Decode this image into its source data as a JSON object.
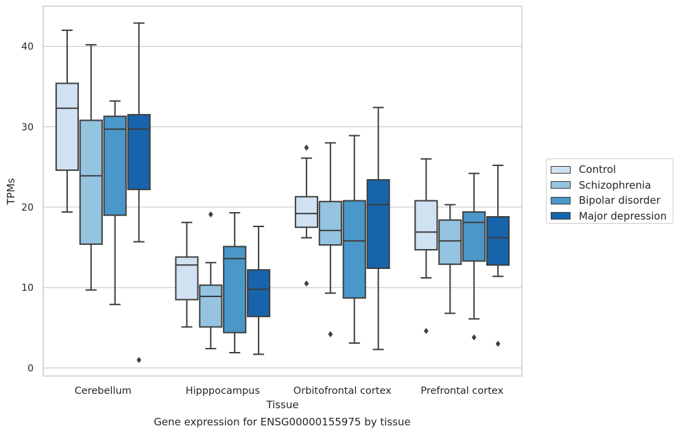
{
  "caption": "Gene expression for ENSG00000155975 by tissue",
  "chart_data": {
    "type": "boxplot",
    "xlabel": "Tissue",
    "ylabel": "TPMs",
    "ylim": [
      -1,
      45
    ],
    "yticks": [
      0,
      10,
      20,
      30,
      40
    ],
    "grid": "horizontal",
    "legend_position": "right",
    "categories": [
      "Cerebellum",
      "Hipppocampus",
      "Orbitofrontal cortex",
      "Prefrontal cortex"
    ],
    "series": [
      {
        "name": "Control",
        "color": "#d0e1f2",
        "boxes": [
          {
            "whislo": 19.4,
            "q1": 24.6,
            "med": 32.3,
            "q3": 35.4,
            "whishi": 42.0,
            "fliers": []
          },
          {
            "whislo": 5.1,
            "q1": 8.5,
            "med": 12.8,
            "q3": 13.8,
            "whishi": 18.1,
            "fliers": []
          },
          {
            "whislo": 16.2,
            "q1": 17.5,
            "med": 19.2,
            "q3": 21.3,
            "whishi": 26.1,
            "fliers": [
              27.4,
              10.5
            ]
          },
          {
            "whislo": 11.2,
            "q1": 14.7,
            "med": 16.9,
            "q3": 20.8,
            "whishi": 26.0,
            "fliers": [
              4.6
            ]
          }
        ]
      },
      {
        "name": "Schizophrenia",
        "color": "#94c4df",
        "boxes": [
          {
            "whislo": 9.7,
            "q1": 15.4,
            "med": 23.9,
            "q3": 30.8,
            "whishi": 40.2,
            "fliers": []
          },
          {
            "whislo": 2.4,
            "q1": 5.1,
            "med": 8.9,
            "q3": 10.3,
            "whishi": 13.1,
            "fliers": [
              19.1
            ]
          },
          {
            "whislo": 9.3,
            "q1": 15.3,
            "med": 17.1,
            "q3": 20.7,
            "whishi": 28.0,
            "fliers": [
              4.2
            ]
          },
          {
            "whislo": 6.8,
            "q1": 12.9,
            "med": 15.8,
            "q3": 18.4,
            "whishi": 20.3,
            "fliers": []
          }
        ]
      },
      {
        "name": "Bipolar disorder",
        "color": "#4a98c9",
        "boxes": [
          {
            "whislo": 7.9,
            "q1": 19.0,
            "med": 29.7,
            "q3": 31.3,
            "whishi": 33.2,
            "fliers": []
          },
          {
            "whislo": 1.9,
            "q1": 4.4,
            "med": 13.6,
            "q3": 15.1,
            "whishi": 19.3,
            "fliers": []
          },
          {
            "whislo": 3.1,
            "q1": 8.7,
            "med": 15.8,
            "q3": 20.8,
            "whishi": 28.9,
            "fliers": []
          },
          {
            "whislo": 6.1,
            "q1": 13.3,
            "med": 18.1,
            "q3": 19.4,
            "whishi": 24.2,
            "fliers": [
              3.8
            ]
          }
        ]
      },
      {
        "name": "Major depression",
        "color": "#1764ab",
        "boxes": [
          {
            "whislo": 15.7,
            "q1": 22.2,
            "med": 29.7,
            "q3": 31.5,
            "whishi": 42.9,
            "fliers": [
              1.0
            ]
          },
          {
            "whislo": 1.7,
            "q1": 6.4,
            "med": 9.8,
            "q3": 12.2,
            "whishi": 17.6,
            "fliers": []
          },
          {
            "whislo": 2.3,
            "q1": 12.4,
            "med": 20.3,
            "q3": 23.4,
            "whishi": 32.4,
            "fliers": []
          },
          {
            "whislo": 11.4,
            "q1": 12.8,
            "med": 16.2,
            "q3": 18.8,
            "whishi": 25.2,
            "fliers": [
              3.0
            ]
          }
        ]
      }
    ]
  }
}
